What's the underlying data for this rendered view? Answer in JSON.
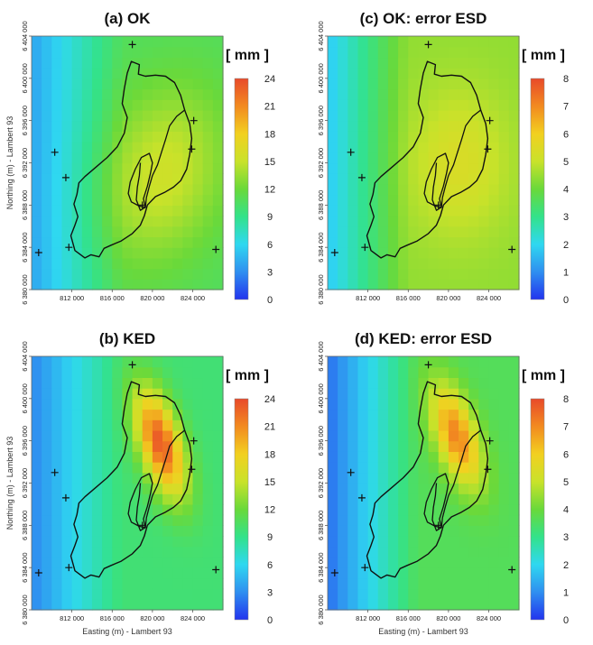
{
  "chart_data": {
    "type": "heatmap",
    "xlabel": "Easting (m) - Lambert 93",
    "ylabel": "Northing (m) - Lambert 93",
    "x_ticks": [
      "812 000",
      "816 000",
      "820 000",
      "824 000"
    ],
    "x_tick_values": [
      812000,
      816000,
      820000,
      824000
    ],
    "y_ticks": [
      "6 380 000",
      "6 384 000",
      "6 388 000",
      "6 392 000",
      "6 396 000",
      "6 400 000",
      "6 404 000"
    ],
    "y_tick_values": [
      6380000,
      6384000,
      6388000,
      6392000,
      6396000,
      6400000,
      6404000
    ],
    "xlim": [
      808000,
      827000
    ],
    "ylim": [
      6380000,
      6404000
    ],
    "grid": false,
    "colormap": [
      "#2233ee",
      "#2f8ff0",
      "#2fd8f0",
      "#33e28a",
      "#6ad93a",
      "#c9e22a",
      "#f2d020",
      "#f28a20",
      "#e84a2a"
    ],
    "stations": [
      {
        "x": 818000,
        "y": 6403200
      },
      {
        "x": 810300,
        "y": 6393000
      },
      {
        "x": 811400,
        "y": 6390600
      },
      {
        "x": 808700,
        "y": 6383500
      },
      {
        "x": 811700,
        "y": 6384000
      },
      {
        "x": 819000,
        "y": 6388000
      },
      {
        "x": 824100,
        "y": 6396000
      },
      {
        "x": 823900,
        "y": 6393300
      },
      {
        "x": 826300,
        "y": 6383800
      }
    ],
    "panels": [
      {
        "title": "(a) OK",
        "unit": "[ mm ]",
        "cbar_ticks": [
          "24",
          "21",
          "18",
          "15",
          "12",
          "9",
          "6",
          "3",
          "0"
        ],
        "vmin": 0,
        "vmax": 24,
        "field": "ok_rain"
      },
      {
        "title": "(c) OK: error ESD",
        "unit": "[ mm ]",
        "cbar_ticks": [
          "8",
          "7",
          "6",
          "5",
          "4",
          "3",
          "2",
          "1",
          "0"
        ],
        "vmin": 0,
        "vmax": 8,
        "field": "ok_err"
      },
      {
        "title": "(b) KED",
        "unit": "[ mm ]",
        "cbar_ticks": [
          "24",
          "21",
          "18",
          "15",
          "12",
          "9",
          "6",
          "3",
          "0"
        ],
        "vmin": 0,
        "vmax": 24,
        "field": "ked_rain"
      },
      {
        "title": "(d) KED: error ESD",
        "unit": "[ mm ]",
        "cbar_ticks": [
          "8",
          "7",
          "6",
          "5",
          "4",
          "3",
          "2",
          "1",
          "0"
        ],
        "vmin": 0,
        "vmax": 8,
        "field": "ked_err"
      }
    ]
  }
}
